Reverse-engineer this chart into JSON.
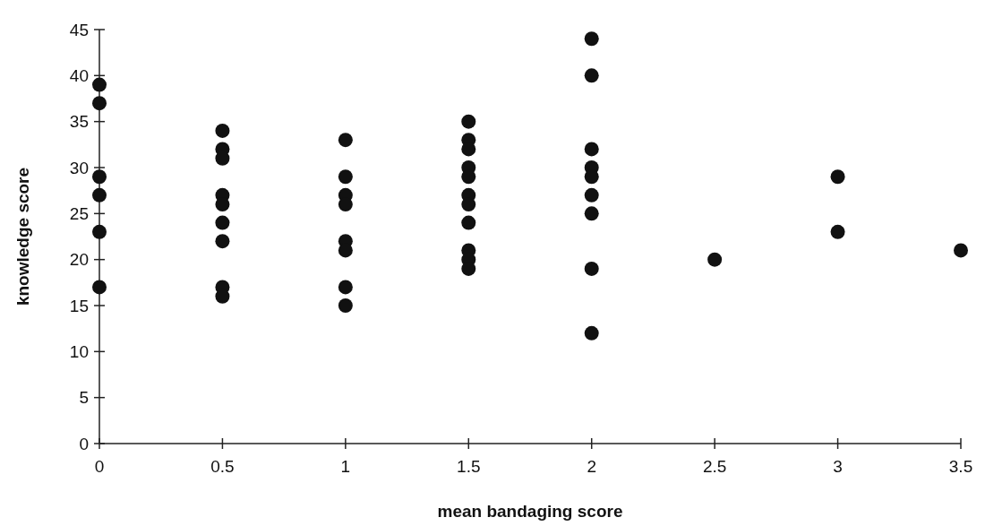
{
  "chart_data": {
    "type": "scatter",
    "xlabel": "mean bandaging score",
    "ylabel": "knowledge score",
    "x": [
      0,
      0,
      0,
      0,
      0,
      0,
      0.5,
      0.5,
      0.5,
      0.5,
      0.5,
      0.5,
      0.5,
      0.5,
      0.5,
      1,
      1,
      1,
      1,
      1,
      1,
      1,
      1,
      1.5,
      1.5,
      1.5,
      1.5,
      1.5,
      1.5,
      1.5,
      1.5,
      1.5,
      1.5,
      1.5,
      2,
      2,
      2,
      2,
      2,
      2,
      2,
      2,
      2,
      2.5,
      3,
      3,
      3.5
    ],
    "values": [
      39,
      37,
      29,
      27,
      23,
      17,
      34,
      32,
      31,
      27,
      26,
      24,
      22,
      17,
      16,
      33,
      29,
      27,
      26,
      22,
      21,
      17,
      15,
      35,
      33,
      32,
      30,
      29,
      27,
      26,
      24,
      21,
      20,
      19,
      44,
      40,
      32,
      30,
      29,
      27,
      25,
      19,
      12,
      20,
      29,
      23,
      21
    ],
    "color": "#111111",
    "marker": "circle",
    "xlim": [
      0,
      3.5
    ],
    "xticks": [
      0,
      0.5,
      1,
      1.5,
      2,
      2.5,
      3,
      3.5
    ],
    "ylim": [
      0,
      45
    ],
    "yticks": [
      0,
      5,
      10,
      15,
      20,
      25,
      30,
      35,
      40,
      45
    ],
    "grid": false,
    "legend": false
  }
}
